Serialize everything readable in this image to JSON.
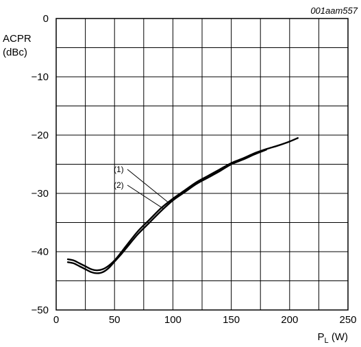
{
  "figure_code": "001aam557",
  "chart_data": {
    "type": "line",
    "ylabel_line1": "ACPR",
    "ylabel_line2": "(dBc)",
    "xlabel_main": "P",
    "xlabel_sub": "L",
    "xlabel_unit": "(W)",
    "xlim": [
      0,
      250
    ],
    "ylim": [
      -50,
      0
    ],
    "xticks": [
      0,
      50,
      100,
      150,
      200,
      250
    ],
    "yticks": [
      0,
      -10,
      -20,
      -30,
      -40,
      -50
    ],
    "x_minor_step": 25,
    "y_minor_step": 5,
    "grid": true,
    "series": [
      {
        "name": "(1)",
        "x": [
          10,
          15,
          20,
          25,
          30,
          35,
          40,
          45,
          50,
          55,
          60,
          70,
          80,
          90,
          100,
          110,
          120,
          130,
          140,
          150,
          160,
          170,
          180,
          190,
          200,
          207
        ],
        "y": [
          -41.3,
          -41.5,
          -42.0,
          -42.5,
          -43.0,
          -43.2,
          -43.0,
          -42.4,
          -41.5,
          -40.3,
          -39.0,
          -36.5,
          -34.5,
          -32.5,
          -30.9,
          -29.5,
          -28.1,
          -27.0,
          -25.9,
          -24.8,
          -24.0,
          -23.1,
          -22.4,
          -21.8,
          -21.1,
          -20.5
        ]
      },
      {
        "name": "(2)",
        "x": [
          10,
          15,
          20,
          25,
          30,
          35,
          40,
          45,
          50,
          55,
          60,
          70,
          80,
          90,
          100,
          110,
          120,
          130,
          140,
          150,
          160,
          170,
          180
        ],
        "y": [
          -41.8,
          -42.0,
          -42.5,
          -43.0,
          -43.5,
          -43.7,
          -43.5,
          -42.8,
          -41.7,
          -40.6,
          -39.4,
          -37.0,
          -35.0,
          -33.0,
          -31.2,
          -29.8,
          -28.4,
          -27.3,
          -26.2,
          -25.0,
          -24.2,
          -23.3,
          -22.5
        ]
      }
    ],
    "annotations": [
      {
        "label": "(1)",
        "series": 0,
        "at_x": 96
      },
      {
        "label": "(2)",
        "series": 1,
        "at_x": 92
      }
    ]
  }
}
